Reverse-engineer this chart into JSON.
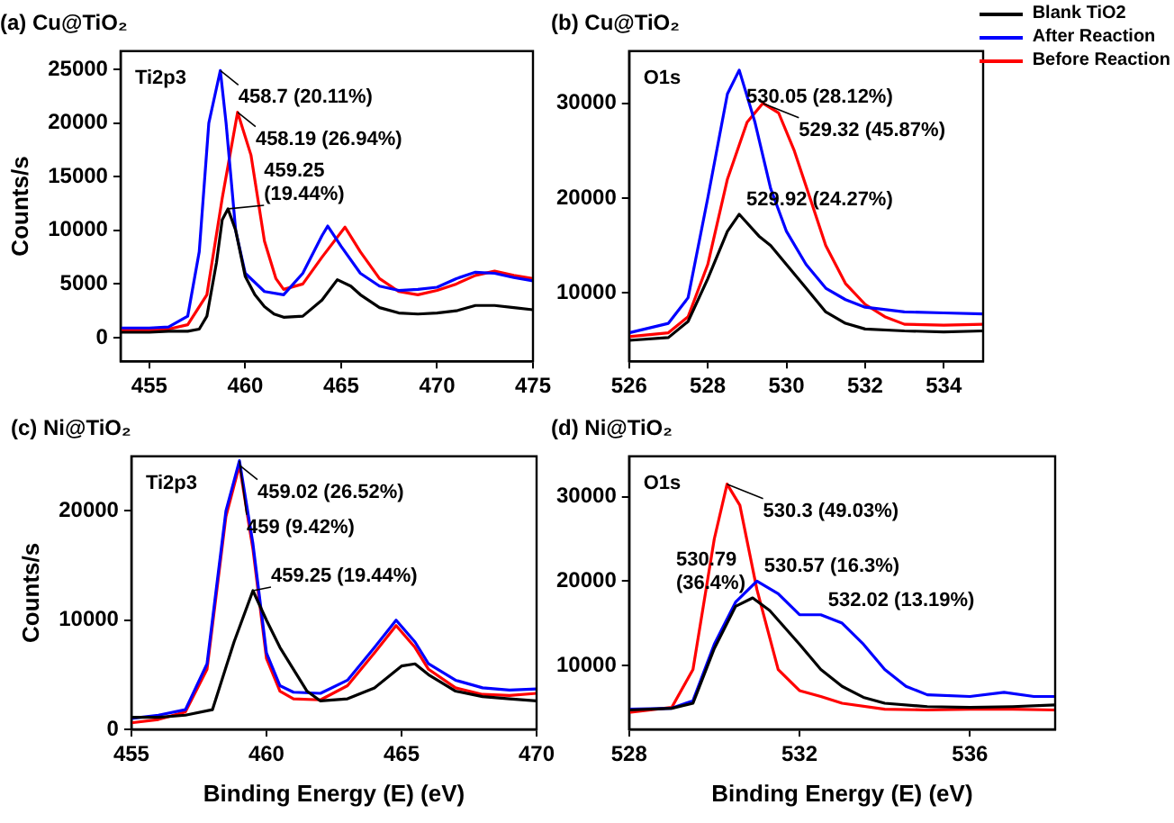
{
  "chart_data": [
    {
      "type": "line",
      "title": "(a) Cu@TiO₂",
      "ylabel": "Counts/s",
      "xlim": [
        453.5,
        475
      ],
      "xticks": [
        455,
        460,
        465,
        470,
        475
      ],
      "ylim": [
        -2200,
        26700
      ],
      "yticks": [
        0,
        5000,
        10000,
        15000,
        20000,
        25000
      ],
      "legend": false,
      "annotations": [
        "Ti2p3",
        {
          "text": "458.7 (20.11%)",
          "x": 458.7,
          "y": 24900
        },
        {
          "text": "458.19 (26.94%)",
          "x": 459.6,
          "y": 21000
        },
        {
          "text": "459.25\n(19.44%)",
          "x": 459.1,
          "y": 12000
        }
      ],
      "series": [
        {
          "color": "#000000",
          "x": [
            453.5,
            455,
            456,
            457,
            457.6,
            458,
            458.5,
            458.8,
            459.1,
            459.5,
            460,
            460.5,
            461,
            461.5,
            462,
            463,
            464,
            464.8,
            465.5,
            466,
            467,
            468,
            469,
            470,
            471,
            472,
            473,
            474,
            475
          ],
          "values": [
            500,
            500,
            600,
            600,
            800,
            2000,
            7000,
            11000,
            12000,
            10000,
            5700,
            4000,
            2900,
            2200,
            1900,
            2000,
            3500,
            5400,
            4800,
            4000,
            2800,
            2300,
            2200,
            2300,
            2500,
            3000,
            3000,
            2800,
            2600
          ]
        },
        {
          "color": "#0000ff",
          "x": [
            453.5,
            455,
            456,
            457,
            457.6,
            458.1,
            458.7,
            459,
            459.5,
            460,
            461,
            462,
            463,
            464,
            464.3,
            465,
            466,
            467,
            468,
            469,
            470,
            471,
            472,
            473,
            474,
            475
          ],
          "values": [
            900,
            900,
            1000,
            2000,
            8000,
            20000,
            24900,
            20000,
            10000,
            6000,
            4300,
            4000,
            6000,
            9500,
            10400,
            8500,
            6000,
            4800,
            4400,
            4500,
            4700,
            5500,
            6100,
            6000,
            5600,
            5300
          ]
        },
        {
          "color": "#ff0000",
          "x": [
            453.5,
            455,
            456,
            457,
            458,
            458.8,
            459.6,
            460.3,
            461,
            461.6,
            462,
            463,
            464,
            465.2,
            466,
            467,
            468,
            469,
            470,
            471,
            472,
            473,
            474,
            475
          ],
          "values": [
            700,
            700,
            800,
            1200,
            4000,
            13000,
            21000,
            17000,
            9000,
            5500,
            4500,
            5000,
            7500,
            10300,
            8000,
            5500,
            4300,
            4000,
            4400,
            5000,
            5800,
            6200,
            5800,
            5500
          ]
        }
      ]
    },
    {
      "type": "line",
      "title": "(b) Cu@TiO₂",
      "xlim": [
        526,
        535
      ],
      "xticks": [
        526,
        528,
        530,
        532,
        534
      ],
      "ylim": [
        2800,
        35500
      ],
      "yticks": [
        10000,
        20000,
        30000
      ],
      "legend": "top right",
      "annotations": [
        "O1s",
        {
          "text": "530.05 (28.12%)",
          "x": 528.8,
          "y": 33500
        },
        {
          "text": "529.32 (45.87%)",
          "x": 529.4,
          "y": 30000
        },
        {
          "text": "529.92 (24.27%)",
          "x": 528.8,
          "y": 18300
        }
      ],
      "series": [
        {
          "name": "Blank TiO2",
          "color": "#000000",
          "x": [
            526,
            527,
            527.5,
            528,
            528.5,
            528.8,
            529.3,
            529.6,
            530,
            530.5,
            531,
            531.5,
            532,
            533,
            534,
            535
          ],
          "values": [
            5000,
            5300,
            7000,
            11500,
            16500,
            18300,
            16000,
            15000,
            13000,
            10500,
            8000,
            6800,
            6200,
            6000,
            5900,
            6000
          ]
        },
        {
          "name": "After Reaction",
          "color": "#0000ff",
          "x": [
            526,
            527,
            527.5,
            528,
            528.5,
            528.8,
            529.2,
            529.6,
            530,
            530.5,
            531,
            531.5,
            532,
            533,
            534,
            535
          ],
          "values": [
            5800,
            6800,
            9500,
            20000,
            31000,
            33500,
            28000,
            21000,
            16500,
            13000,
            10500,
            9300,
            8500,
            8000,
            7900,
            7800
          ]
        },
        {
          "name": "Before Reaction",
          "color": "#ff0000",
          "x": [
            526,
            527,
            527.5,
            528,
            528.5,
            529,
            529.4,
            529.8,
            530.2,
            530.6,
            531,
            531.5,
            532,
            532.5,
            533,
            534,
            535
          ],
          "values": [
            5400,
            5800,
            7500,
            13000,
            22000,
            28000,
            30000,
            29000,
            25000,
            20000,
            15000,
            11000,
            8800,
            7500,
            6700,
            6600,
            6700
          ]
        }
      ]
    },
    {
      "type": "line",
      "title": "(c) Ni@TiO₂",
      "xlabel": "Binding Energy (E) (eV)",
      "ylabel": "Counts/s",
      "xlim": [
        455,
        470
      ],
      "xticks": [
        455,
        460,
        465,
        470
      ],
      "ylim": [
        0,
        25000
      ],
      "yticks": [
        0,
        10000,
        20000
      ],
      "legend": false,
      "annotations": [
        "Ti2p3",
        {
          "text": "459.02 (26.52%)",
          "x": 459,
          "y": 24200
        },
        {
          "text": "459 (9.42%)",
          "x": 459,
          "y": 24600
        },
        {
          "text": "459.25 (19.44%)",
          "x": 459.5,
          "y": 12700
        }
      ],
      "series": [
        {
          "color": "#000000",
          "x": [
            455,
            456,
            457,
            458,
            458.8,
            459.5,
            460,
            460.5,
            461,
            461.5,
            462,
            463,
            464,
            465,
            465.5,
            466,
            467,
            468,
            469,
            470
          ],
          "values": [
            1100,
            1100,
            1300,
            1800,
            8000,
            12700,
            10000,
            7500,
            5500,
            3500,
            2600,
            2800,
            3800,
            5800,
            6000,
            5000,
            3500,
            3000,
            2800,
            2600
          ]
        },
        {
          "color": "#0000ff",
          "x": [
            455,
            456,
            457,
            457.8,
            458.5,
            459,
            459.5,
            460,
            460.5,
            461,
            462,
            463,
            464,
            464.8,
            465.5,
            466,
            467,
            468,
            469,
            470
          ],
          "values": [
            1000,
            1300,
            1800,
            6000,
            20000,
            24600,
            17000,
            7000,
            4000,
            3400,
            3300,
            4500,
            7500,
            10000,
            8000,
            6000,
            4500,
            3800,
            3600,
            3700
          ]
        },
        {
          "color": "#ff0000",
          "x": [
            455,
            456,
            457,
            457.8,
            458.5,
            459,
            459.5,
            460,
            460.5,
            461,
            462,
            463,
            464,
            464.8,
            465.5,
            466,
            467,
            468,
            469,
            470
          ],
          "values": [
            600,
            900,
            1600,
            5500,
            19500,
            24200,
            16500,
            6500,
            3500,
            2800,
            2700,
            4000,
            7000,
            9500,
            7500,
            5500,
            3800,
            3200,
            3100,
            3300
          ]
        }
      ]
    },
    {
      "type": "line",
      "title": "(d) Ni@TiO₂",
      "xlabel": "Binding Energy (E) (eV)",
      "xlim": [
        528,
        538
      ],
      "xticks": [
        528,
        532,
        536
      ],
      "ylim": [
        2400,
        34800
      ],
      "yticks": [
        10000,
        20000,
        30000
      ],
      "legend": false,
      "annotations": [
        "O1s",
        {
          "text": "530.3 (49.03%)",
          "x": 530.3,
          "y": 31500
        },
        {
          "text": "530.57 (16.3%)",
          "x": 531,
          "y": 20000
        },
        {
          "text": "532.02 (13.19%)",
          "x": 532.5,
          "y": 16000
        },
        {
          "text": "530.79\n(36.4%)",
          "x": 530.9,
          "y": 18000
        }
      ],
      "series": [
        {
          "color": "#000000",
          "x": [
            528,
            529,
            529.5,
            530,
            530.5,
            530.9,
            531.3,
            532,
            532.5,
            533,
            533.5,
            534,
            535,
            536,
            537,
            538
          ],
          "values": [
            4700,
            4900,
            5500,
            12000,
            17000,
            18000,
            16500,
            12500,
            9500,
            7500,
            6200,
            5500,
            5100,
            5000,
            5100,
            5300
          ]
        },
        {
          "color": "#0000ff",
          "x": [
            528,
            529,
            529.5,
            530,
            530.5,
            531,
            531.5,
            532,
            532.5,
            533,
            533.5,
            534,
            534.5,
            535,
            536,
            536.8,
            537.5,
            538
          ],
          "values": [
            4800,
            4900,
            5800,
            12500,
            17500,
            20000,
            18500,
            16000,
            16000,
            15000,
            12500,
            9500,
            7500,
            6500,
            6300,
            6800,
            6300,
            6300
          ]
        },
        {
          "color": "#ff0000",
          "x": [
            528,
            529,
            529.5,
            530,
            530.3,
            530.6,
            531,
            531.5,
            532,
            532.5,
            533,
            534,
            535,
            536,
            537,
            538
          ],
          "values": [
            4400,
            5000,
            9500,
            25000,
            31500,
            29000,
            19000,
            9500,
            7000,
            6300,
            5500,
            4800,
            4700,
            4800,
            4800,
            4700
          ]
        }
      ]
    }
  ]
}
